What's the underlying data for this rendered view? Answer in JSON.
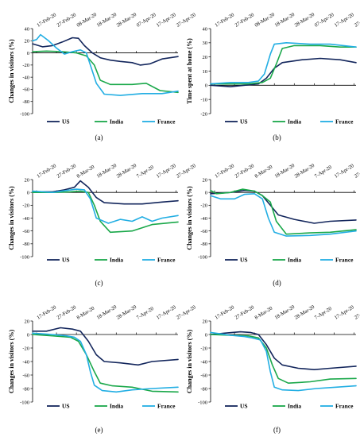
{
  "chart_data": [
    {
      "type": "line",
      "panel_label": "(a)",
      "ylabel": "Changes in visitors (%)",
      "ylim": [
        -100,
        40
      ],
      "yticks": [
        -100,
        -80,
        -60,
        -40,
        -20,
        0,
        20,
        40
      ],
      "xlim": [
        "2020-02-15",
        "2020-04-28"
      ],
      "xticks": [
        "2020-02-17",
        "2020-02-27",
        "2020-03-08",
        "2020-03-18",
        "2020-03-28",
        "2020-04-07",
        "2020-04-17",
        "2020-04-27"
      ],
      "xtick_labels": [
        "17-Feb-20",
        "27-Feb-20",
        "08-Mar-20",
        "18-Mar-20",
        "28-Mar-20",
        "07-Apr-20",
        "17-Apr-20",
        "27-Apr-20"
      ],
      "legend": "bottom",
      "series": [
        {
          "name": "US",
          "color": "#13265c",
          "x": [
            "2020-02-15",
            "2020-02-20",
            "2020-02-25",
            "2020-03-01",
            "2020-03-06",
            "2020-03-09",
            "2020-03-12",
            "2020-03-16",
            "2020-03-20",
            "2020-03-25",
            "2020-03-30",
            "2020-04-05",
            "2020-04-09",
            "2020-04-14",
            "2020-04-20",
            "2020-04-28"
          ],
          "y": [
            15,
            10,
            12,
            18,
            25,
            24,
            12,
            0,
            -8,
            -12,
            -14,
            -16,
            -20,
            -18,
            -10,
            -6
          ]
        },
        {
          "name": "India",
          "color": "#1aa84a",
          "x": [
            "2020-02-15",
            "2020-02-22",
            "2020-03-01",
            "2020-03-08",
            "2020-03-13",
            "2020-03-17",
            "2020-03-20",
            "2020-03-25",
            "2020-04-05",
            "2020-04-12",
            "2020-04-19",
            "2020-04-28"
          ],
          "y": [
            2,
            3,
            2,
            0,
            -5,
            -20,
            -45,
            -52,
            -52,
            -50,
            -62,
            -65
          ]
        },
        {
          "name": "France",
          "color": "#22aee3",
          "x": [
            "2020-02-15",
            "2020-02-17",
            "2020-02-19",
            "2020-02-23",
            "2020-02-27",
            "2020-03-02",
            "2020-03-06",
            "2020-03-10",
            "2020-03-13",
            "2020-03-16",
            "2020-03-18",
            "2020-03-22",
            "2020-03-30",
            "2020-04-10",
            "2020-04-20",
            "2020-04-28"
          ],
          "y": [
            20,
            22,
            30,
            20,
            8,
            -2,
            2,
            5,
            0,
            -30,
            -50,
            -68,
            -70,
            -67,
            -67,
            -63
          ]
        }
      ]
    },
    {
      "type": "line",
      "panel_label": "(b)",
      "ylabel": "Time spent at home (%)",
      "ylim": [
        -20,
        40
      ],
      "yticks": [
        -20,
        -10,
        0,
        10,
        20,
        30,
        40
      ],
      "xlim": [
        "2020-02-15",
        "2020-04-28"
      ],
      "xticks": [
        "2020-02-17",
        "2020-02-27",
        "2020-03-08",
        "2020-03-18",
        "2020-03-28",
        "2020-04-07",
        "2020-04-17",
        "2020-04-27"
      ],
      "xtick_labels": [
        "17-Feb-20",
        "27-Feb-20",
        "08-Mar-20",
        "18-Mar-20",
        "28-Mar-20",
        "07-Apr-20",
        "17-Apr-20",
        "27-Apr-20"
      ],
      "legend": "bottom",
      "series": [
        {
          "name": "US",
          "color": "#13265c",
          "x": [
            "2020-02-15",
            "2020-02-25",
            "2020-03-03",
            "2020-03-10",
            "2020-03-14",
            "2020-03-18",
            "2020-03-22",
            "2020-04-01",
            "2020-04-10",
            "2020-04-20",
            "2020-04-28"
          ],
          "y": [
            0,
            -1,
            0,
            1,
            5,
            12,
            16,
            18,
            19,
            18,
            16
          ]
        },
        {
          "name": "India",
          "color": "#1aa84a",
          "x": [
            "2020-02-15",
            "2020-02-25",
            "2020-03-05",
            "2020-03-12",
            "2020-03-16",
            "2020-03-19",
            "2020-03-22",
            "2020-03-28",
            "2020-04-10",
            "2020-04-20",
            "2020-04-28"
          ],
          "y": [
            1,
            1,
            1,
            2,
            5,
            15,
            26,
            28,
            28,
            27,
            27
          ]
        },
        {
          "name": "France",
          "color": "#22aee3",
          "x": [
            "2020-02-15",
            "2020-02-25",
            "2020-03-05",
            "2020-03-10",
            "2020-03-13",
            "2020-03-16",
            "2020-03-18",
            "2020-03-24",
            "2020-04-05",
            "2020-04-15",
            "2020-04-28"
          ],
          "y": [
            1,
            2,
            2,
            3,
            8,
            22,
            29,
            30,
            29,
            29,
            27
          ]
        }
      ]
    },
    {
      "type": "line",
      "panel_label": "(c)",
      "ylabel": "Changes in visitors (%)",
      "ylim": [
        -100,
        20
      ],
      "yticks": [
        -100,
        -80,
        -60,
        -40,
        -20,
        0,
        20
      ],
      "xlim": [
        "2020-02-15",
        "2020-04-28"
      ],
      "xticks": [
        "2020-02-17",
        "2020-02-27",
        "2020-03-08",
        "2020-03-18",
        "2020-03-28",
        "2020-04-07",
        "2020-04-17",
        "2020-04-27"
      ],
      "xtick_labels": [
        "17-Feb-20",
        "27-Feb-20",
        "8-Mar-20",
        "18-Mar-20",
        "28-Mar-20",
        "7-Apr-20",
        "17-Apr-20",
        "27-Apr-20"
      ],
      "legend": "bottom",
      "series": [
        {
          "name": "US",
          "color": "#13265c",
          "x": [
            "2020-02-15",
            "2020-02-25",
            "2020-03-02",
            "2020-03-07",
            "2020-03-10",
            "2020-03-14",
            "2020-03-18",
            "2020-03-22",
            "2020-04-01",
            "2020-04-10",
            "2020-04-20",
            "2020-04-28"
          ],
          "y": [
            1,
            1,
            4,
            8,
            18,
            8,
            -8,
            -16,
            -18,
            -18,
            -15,
            -13
          ]
        },
        {
          "name": "India",
          "color": "#1aa84a",
          "x": [
            "2020-02-15",
            "2020-02-25",
            "2020-03-05",
            "2020-03-10",
            "2020-03-14",
            "2020-03-17",
            "2020-03-20",
            "2020-03-25",
            "2020-04-05",
            "2020-04-15",
            "2020-04-28"
          ],
          "y": [
            0,
            0,
            1,
            2,
            0,
            -20,
            -45,
            -62,
            -60,
            -50,
            -46
          ]
        },
        {
          "name": "France",
          "color": "#22aee3",
          "x": [
            "2020-02-15",
            "2020-02-25",
            "2020-03-03",
            "2020-03-08",
            "2020-03-12",
            "2020-03-15",
            "2020-03-18",
            "2020-03-24",
            "2020-03-30",
            "2020-04-05",
            "2020-04-10",
            "2020-04-15",
            "2020-04-20",
            "2020-04-28"
          ],
          "y": [
            2,
            0,
            3,
            5,
            4,
            -10,
            -40,
            -48,
            -42,
            -45,
            -38,
            -45,
            -40,
            -36
          ]
        }
      ]
    },
    {
      "type": "line",
      "panel_label": "(d)",
      "ylabel": "Changes in visitors (%)",
      "ylim": [
        -100,
        20
      ],
      "yticks": [
        -100,
        -80,
        -60,
        -40,
        -20,
        0,
        20
      ],
      "xlim": [
        "2020-02-15",
        "2020-04-28"
      ],
      "xticks": [
        "2020-02-17",
        "2020-02-27",
        "2020-03-08",
        "2020-03-18",
        "2020-03-28",
        "2020-04-07",
        "2020-04-17",
        "2020-04-27"
      ],
      "xtick_labels": [
        "17-Feb-20",
        "27-Feb-20",
        "8-Mar-20",
        "18-Mar-20",
        "28-Mar-20",
        "7-Apr-20",
        "17-Apr-20",
        "27-Apr-20"
      ],
      "legend": "bottom",
      "series": [
        {
          "name": "US",
          "color": "#13265c",
          "x": [
            "2020-02-15",
            "2020-02-25",
            "2020-03-03",
            "2020-03-08",
            "2020-03-12",
            "2020-03-16",
            "2020-03-20",
            "2020-03-28",
            "2020-04-07",
            "2020-04-15",
            "2020-04-28"
          ],
          "y": [
            -2,
            0,
            3,
            2,
            -5,
            -20,
            -35,
            -42,
            -48,
            -45,
            -43
          ]
        },
        {
          "name": "India",
          "color": "#1aa84a",
          "x": [
            "2020-02-15",
            "2020-02-18",
            "2020-02-25",
            "2020-03-02",
            "2020-03-08",
            "2020-03-12",
            "2020-03-16",
            "2020-03-19",
            "2020-03-24",
            "2020-04-05",
            "2020-04-15",
            "2020-04-28"
          ],
          "y": [
            3,
            -2,
            0,
            5,
            2,
            -5,
            -15,
            -45,
            -65,
            -63,
            -62,
            -58
          ]
        },
        {
          "name": "France",
          "color": "#22aee3",
          "x": [
            "2020-02-15",
            "2020-02-20",
            "2020-02-27",
            "2020-03-03",
            "2020-03-08",
            "2020-03-12",
            "2020-03-15",
            "2020-03-18",
            "2020-03-24",
            "2020-04-05",
            "2020-04-15",
            "2020-04-28"
          ],
          "y": [
            -5,
            -10,
            -10,
            -3,
            -2,
            -10,
            -40,
            -62,
            -68,
            -67,
            -65,
            -60
          ]
        }
      ]
    },
    {
      "type": "line",
      "panel_label": "(e)",
      "ylabel": "Changes in visitors (%)",
      "ylim": [
        -100,
        20
      ],
      "yticks": [
        -100,
        -80,
        -60,
        -40,
        -20,
        0,
        20
      ],
      "xlim": [
        "2020-02-15",
        "2020-04-28"
      ],
      "xticks": [
        "2020-02-17",
        "2020-02-27",
        "2020-03-08",
        "2020-03-18",
        "2020-03-28",
        "2020-04-07",
        "2020-04-17",
        "2020-04-27"
      ],
      "xtick_labels": [
        "17-Feb-20",
        "27-Feb-20",
        "8-Mar-20",
        "18-Mar-20",
        "28-Mar-20",
        "7-Apr-20",
        "17-Apr-20",
        "27-Apr-20"
      ],
      "legend": "bottom",
      "series": [
        {
          "name": "US",
          "color": "#13265c",
          "x": [
            "2020-02-15",
            "2020-02-22",
            "2020-02-29",
            "2020-03-06",
            "2020-03-10",
            "2020-03-14",
            "2020-03-18",
            "2020-03-22",
            "2020-03-30",
            "2020-04-08",
            "2020-04-15",
            "2020-04-28"
          ],
          "y": [
            5,
            5,
            10,
            8,
            5,
            -10,
            -30,
            -40,
            -42,
            -45,
            -40,
            -37
          ]
        },
        {
          "name": "India",
          "color": "#1aa84a",
          "x": [
            "2020-02-15",
            "2020-02-25",
            "2020-03-05",
            "2020-03-09",
            "2020-03-13",
            "2020-03-17",
            "2020-03-20",
            "2020-03-26",
            "2020-04-05",
            "2020-04-15",
            "2020-04-28"
          ],
          "y": [
            0,
            -2,
            -4,
            -10,
            -30,
            -55,
            -72,
            -76,
            -78,
            -84,
            -85
          ]
        },
        {
          "name": "France",
          "color": "#22aee3",
          "x": [
            "2020-02-15",
            "2020-02-25",
            "2020-03-03",
            "2020-03-07",
            "2020-03-10",
            "2020-03-13",
            "2020-03-15",
            "2020-03-17",
            "2020-03-21",
            "2020-03-28",
            "2020-04-05",
            "2020-04-15",
            "2020-04-28"
          ],
          "y": [
            2,
            0,
            -2,
            -4,
            -10,
            -30,
            -55,
            -75,
            -83,
            -85,
            -82,
            -80,
            -78
          ]
        }
      ]
    },
    {
      "type": "line",
      "panel_label": "(f)",
      "ylabel": "Changes in visitors (%)",
      "ylim": [
        -100,
        20
      ],
      "yticks": [
        -100,
        -80,
        -60,
        -40,
        -20,
        0,
        20
      ],
      "xlim": [
        "2020-02-15",
        "2020-04-28"
      ],
      "xticks": [
        "2020-02-17",
        "2020-02-27",
        "2020-03-08",
        "2020-03-18",
        "2020-03-28",
        "2020-04-07",
        "2020-04-17",
        "2020-04-27"
      ],
      "xtick_labels": [
        "17-Feb-20",
        "27-Feb-20",
        "8-Mar-20",
        "18-Mar-20",
        "28-Mar-20",
        "7-Apr-20",
        "17-Apr-20",
        "27-Apr-20"
      ],
      "legend": "bottom",
      "series": [
        {
          "name": "US",
          "color": "#13265c",
          "x": [
            "2020-02-15",
            "2020-02-22",
            "2020-03-01",
            "2020-03-06",
            "2020-03-10",
            "2020-03-14",
            "2020-03-18",
            "2020-03-22",
            "2020-03-30",
            "2020-04-07",
            "2020-04-15",
            "2020-04-28"
          ],
          "y": [
            0,
            2,
            4,
            3,
            0,
            -15,
            -35,
            -45,
            -50,
            -52,
            -50,
            -47
          ]
        },
        {
          "name": "India",
          "color": "#1aa84a",
          "x": [
            "2020-02-15",
            "2020-02-25",
            "2020-03-05",
            "2020-03-10",
            "2020-03-14",
            "2020-03-17",
            "2020-03-20",
            "2020-03-25",
            "2020-04-05",
            "2020-04-15",
            "2020-04-28"
          ],
          "y": [
            0,
            -1,
            -2,
            -5,
            -20,
            -45,
            -65,
            -72,
            -70,
            -66,
            -65
          ]
        },
        {
          "name": "France",
          "color": "#22aee3",
          "x": [
            "2020-02-15",
            "2020-02-25",
            "2020-03-03",
            "2020-03-07",
            "2020-03-11",
            "2020-03-14",
            "2020-03-16",
            "2020-03-18",
            "2020-03-22",
            "2020-03-30",
            "2020-04-08",
            "2020-04-18",
            "2020-04-28"
          ],
          "y": [
            3,
            -1,
            -3,
            -5,
            -8,
            -25,
            -55,
            -78,
            -82,
            -83,
            -80,
            -78,
            -76
          ]
        }
      ]
    }
  ]
}
